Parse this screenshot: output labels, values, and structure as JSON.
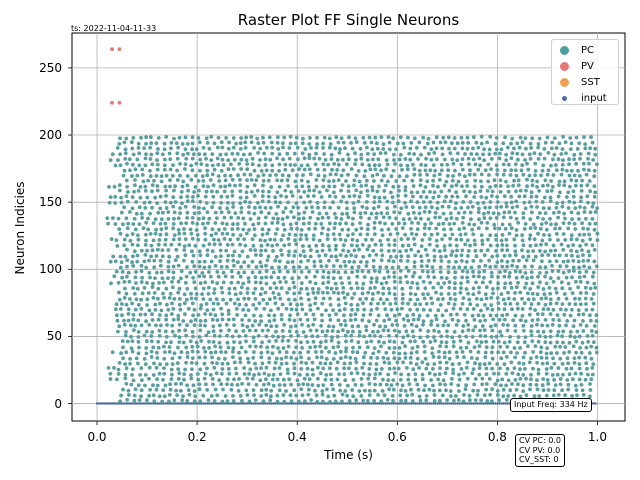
{
  "timestamp": "ts: 2022-11-04-11-33",
  "input_freq": "Input Freq: 334 Hz",
  "cv_lines": [
    "CV PC: 0.0",
    "CV PV: 0.0",
    "CV_SST: 0"
  ],
  "chart_data": {
    "type": "scatter",
    "title": "Raster Plot FF Single Neurons",
    "xlabel": "Time (s)",
    "ylabel": "Neuron Indicies",
    "xlim": [
      -0.05,
      1.055
    ],
    "ylim": [
      -13,
      276
    ],
    "xticks": [
      0.0,
      0.2,
      0.4,
      0.6,
      0.8,
      1.0
    ],
    "xtick_labels": [
      "0.0",
      "0.2",
      "0.4",
      "0.6",
      "0.8",
      "1.0"
    ],
    "yticks": [
      0,
      50,
      100,
      150,
      200,
      250
    ],
    "ytick_labels": [
      "0",
      "50",
      "100",
      "150",
      "200",
      "250"
    ],
    "grid": true,
    "legend_position": "top-right",
    "legend": [
      {
        "name": "PC",
        "color": "#4c9fa1"
      },
      {
        "name": "PV",
        "color": "#e87876"
      },
      {
        "name": "SST",
        "color": "#f0a050"
      },
      {
        "name": "input",
        "color": "#4a6e9c"
      }
    ],
    "series": [
      {
        "name": "PC",
        "color": "#5a9ea0",
        "description_ranges": {
          "neurons": [
            0,
            200
          ],
          "time": [
            0.02,
            1.0
          ]
        }
      },
      {
        "name": "PV",
        "color": "#e87876",
        "points": [
          [
            0.03,
            264
          ],
          [
            0.045,
            264
          ],
          [
            0.03,
            224
          ],
          [
            0.045,
            224
          ]
        ]
      },
      {
        "name": "SST",
        "color": "#f0a050",
        "points": []
      },
      {
        "name": "input",
        "color": "#4a6e9c",
        "points_range": {
          "neuron": 0,
          "time": [
            0.0,
            1.0
          ]
        }
      }
    ],
    "spike_row_step": 4
  }
}
